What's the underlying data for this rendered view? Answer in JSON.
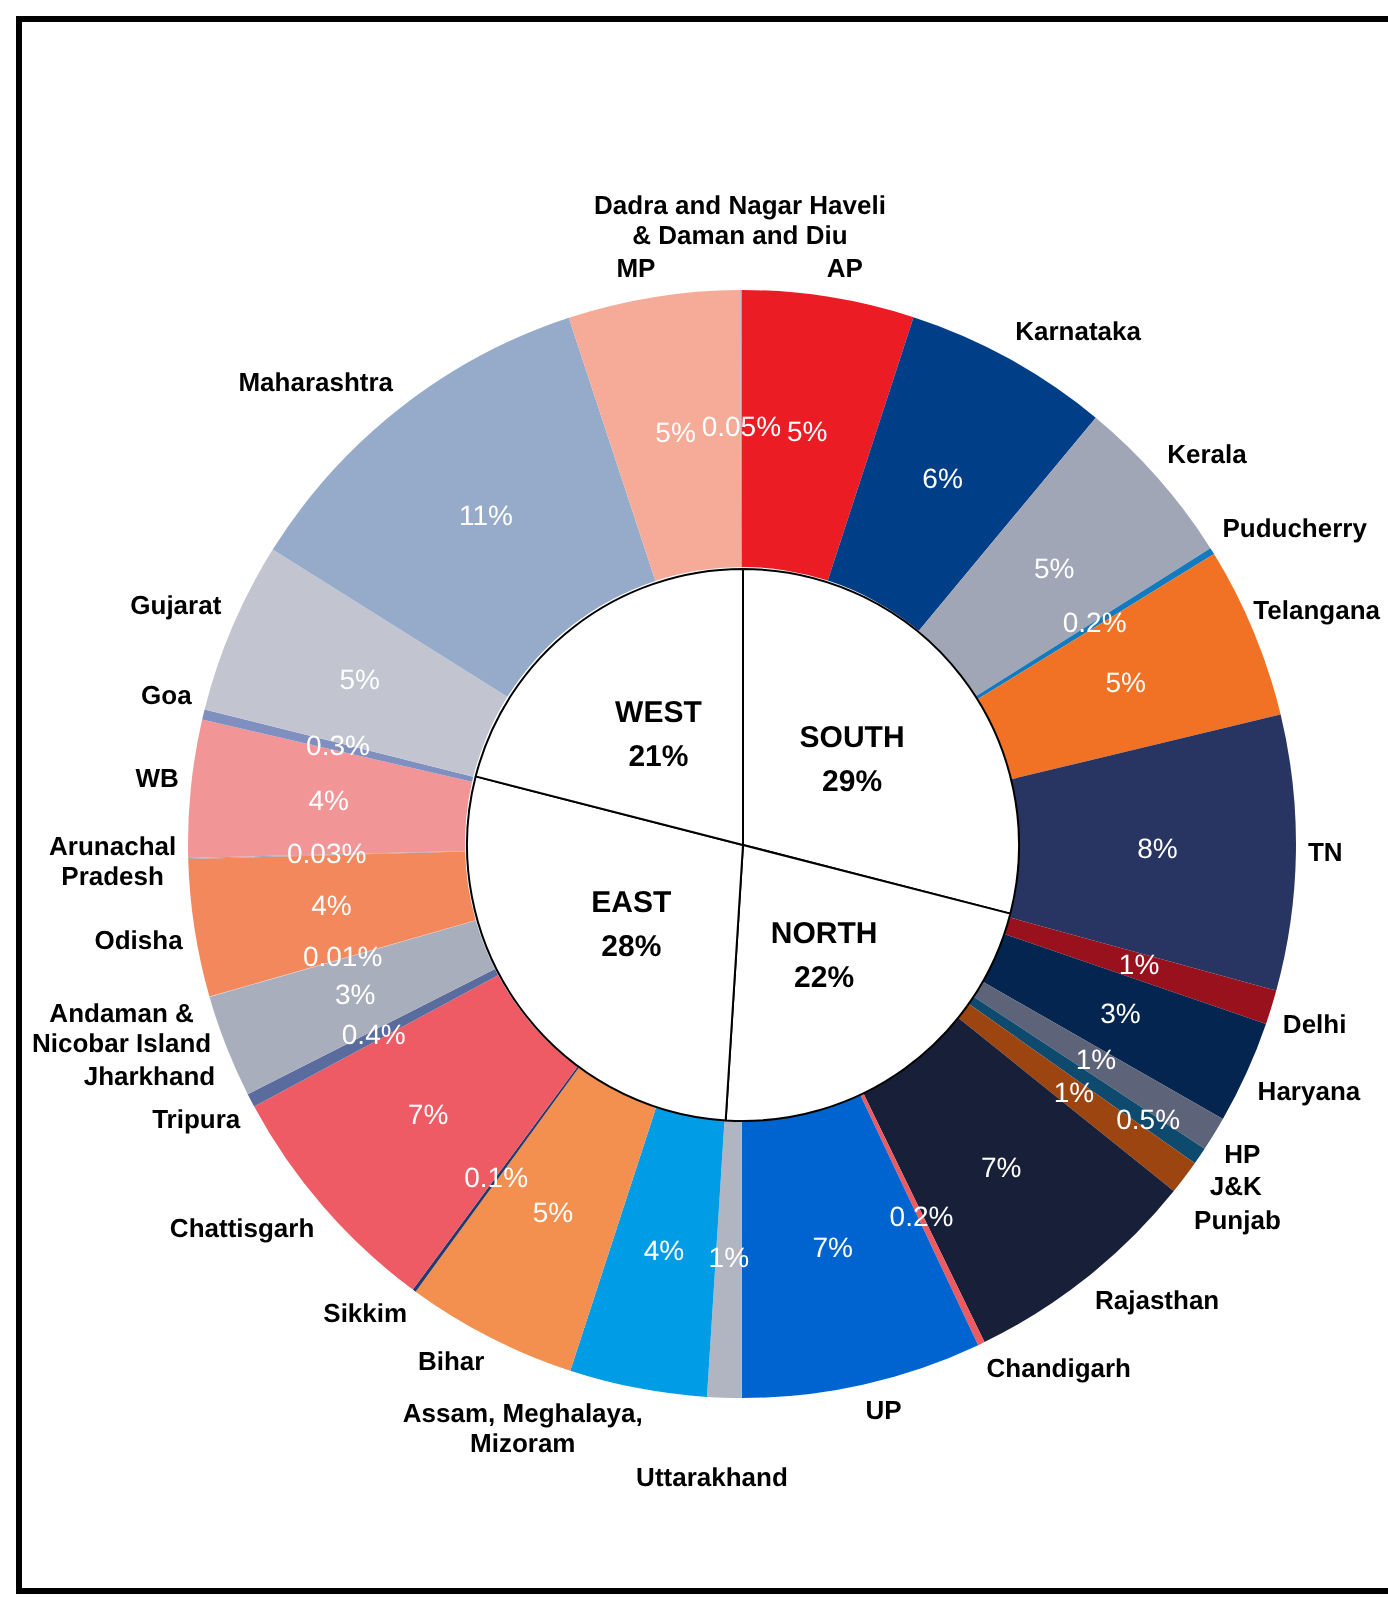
{
  "chart_data": [
    {
      "type": "pie",
      "categories": [
        "SOUTH",
        "NORTH",
        "EAST",
        "WEST"
      ],
      "values": [
        29,
        22,
        28,
        21
      ],
      "colors": [
        "#ffffff",
        "#ffffff",
        "#ffffff",
        "#ffffff"
      ],
      "value_labels": [
        "29%",
        "22%",
        "28%",
        "21%"
      ]
    },
    {
      "type": "donut",
      "categories": [
        "AP",
        "Karnataka",
        "Kerala",
        "Puducherry",
        "Telangana",
        "TN",
        "Delhi",
        "Haryana",
        "HP",
        "J&K",
        "Punjab",
        "Rajasthan",
        "Chandigarh",
        "UP",
        "Uttarakhand",
        "Assam, Meghalaya, Mizoram",
        "Bihar",
        "Sikkim",
        "Chattisgarh",
        "Tripura",
        "Jharkhand",
        "Andaman & Nicobar Island",
        "Odisha",
        "Arunachal Pradesh",
        "WB",
        "Goa",
        "Gujarat",
        "Maharashtra",
        "MP",
        "Dadra and Nagar Haveli & Daman and Diu"
      ],
      "values": [
        5,
        6,
        5,
        0.2,
        5,
        8,
        1,
        3,
        1,
        0.5,
        1,
        7,
        0.2,
        7,
        1,
        4,
        5,
        0.1,
        7,
        0.4,
        3,
        0.01,
        4,
        0.03,
        4,
        0.3,
        5,
        11,
        5,
        0.05
      ],
      "colors": [
        "#ec1c24",
        "#003f88",
        "#a1a6b7",
        "#137bbd",
        "#f17224",
        "#283462",
        "#98111d",
        "#04254f",
        "#5d6378",
        "#0d4a6e",
        "#9c4511",
        "#181f39",
        "#ee5a5f",
        "#0064d0",
        "#b1b5c2",
        "#009de6",
        "#f38f4f",
        "#223a6e",
        "#ee5b64",
        "#5a6b9e",
        "#a9aebd",
        "#c9ccd6",
        "#f2885c",
        "#a0a4b0",
        "#f29597",
        "#7f8fbf",
        "#c2c4d0",
        "#95abc9",
        "#f5ab97",
        "#a3a8b8"
      ],
      "value_labels": [
        "5%",
        "6%",
        "5%",
        "0.2%",
        "5%",
        "8%",
        "1%",
        "3%",
        "1%",
        "0.5%",
        "1%",
        "7%",
        "0.2%",
        "7%",
        "1%",
        "4%",
        "5%",
        "0.1%",
        "7%",
        "0.4%",
        "3%",
        "0.01%",
        "4%",
        "0.03%",
        "4%",
        "0.3%",
        "5%",
        "11%",
        "5%",
        "0.05%"
      ]
    }
  ]
}
